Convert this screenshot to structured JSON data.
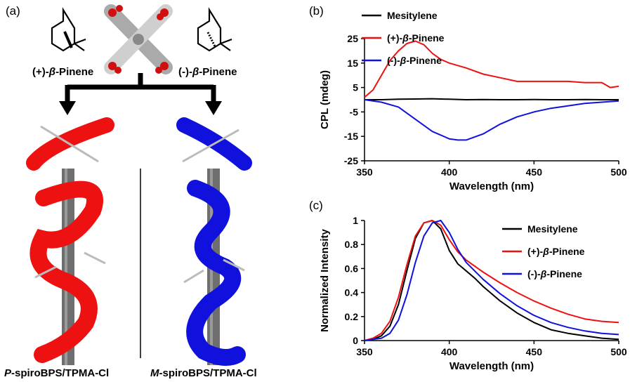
{
  "panels": {
    "a": "(a)",
    "b": "(b)",
    "c": "(c)"
  },
  "panel_a": {
    "left_molecule": {
      "prefix": "(+)-",
      "beta": "β",
      "suffix": "-Pinene"
    },
    "right_molecule": {
      "prefix": "(-)-",
      "beta": "β",
      "suffix": "-Pinene"
    },
    "left_caption": {
      "italic": "P",
      "rest": "-spiroBPS/TPMA-Cl"
    },
    "right_caption": {
      "italic": "M",
      "rest": "-spiroBPS/TPMA-Cl"
    },
    "colors": {
      "plus": "#ee1111",
      "minus": "#1111dd",
      "rod": "#6e6e6e"
    }
  },
  "chart_data": [
    {
      "type": "line",
      "panel": "b",
      "xlabel": "Wavelength (nm)",
      "ylabel": "CPL (mdeg)",
      "xlim": [
        350,
        500
      ],
      "ylim": [
        -25,
        25
      ],
      "xticks": [
        350,
        400,
        450,
        500
      ],
      "yticks": [
        25,
        15,
        5,
        -5,
        -15,
        -25
      ],
      "ytick_labels": [
        "25",
        "15",
        "5",
        "-5",
        "-15",
        "-25"
      ],
      "legend": "top-right",
      "grid": false,
      "series": [
        {
          "name": "Mesitylene",
          "color": "#000000",
          "x": [
            350,
            360,
            370,
            380,
            390,
            400,
            410,
            420,
            430,
            440,
            450,
            460,
            470,
            480,
            490,
            500
          ],
          "y": [
            0,
            0,
            0.2,
            0.3,
            0.4,
            0.2,
            0,
            0.1,
            0,
            0,
            0.1,
            0,
            0,
            0.1,
            0,
            0
          ]
        },
        {
          "name": "(+)-β-Pinene",
          "color": "#ee1111",
          "x": [
            350,
            355,
            360,
            365,
            370,
            375,
            380,
            385,
            390,
            395,
            400,
            410,
            420,
            430,
            440,
            450,
            460,
            470,
            480,
            490,
            495,
            500
          ],
          "y": [
            1,
            4,
            10,
            16,
            20,
            23,
            24,
            22.5,
            19,
            16.5,
            15,
            13,
            10.5,
            9,
            7.5,
            7.5,
            7.5,
            7.5,
            7,
            7,
            5,
            5.5
          ]
        },
        {
          "name": "(-)-β-Pinene",
          "color": "#1111dd",
          "x": [
            350,
            360,
            370,
            380,
            390,
            400,
            405,
            410,
            420,
            430,
            440,
            450,
            460,
            470,
            480,
            490,
            500
          ],
          "y": [
            0,
            -1,
            -3,
            -8,
            -13,
            -16,
            -16.5,
            -16.5,
            -14,
            -10,
            -7,
            -5,
            -3.5,
            -2.5,
            -1.5,
            -1,
            -0.5
          ]
        }
      ]
    },
    {
      "type": "line",
      "panel": "c",
      "xlabel": "Wavelength (nm)",
      "ylabel": "Normalized Intensity",
      "xlim": [
        350,
        500
      ],
      "ylim": [
        0,
        1
      ],
      "xticks": [
        350,
        400,
        450,
        500
      ],
      "yticks": [
        0,
        0.2,
        0.4,
        0.6,
        0.8,
        1
      ],
      "ytick_labels": [
        "0",
        "0.2",
        "0.4",
        "0.6",
        "0.8",
        "1"
      ],
      "legend": "top-right",
      "grid": false,
      "series": [
        {
          "name": "Mesitylene",
          "color": "#000000",
          "x": [
            350,
            355,
            360,
            365,
            370,
            375,
            380,
            385,
            390,
            395,
            400,
            405,
            410,
            415,
            420,
            430,
            440,
            450,
            460,
            470,
            480,
            490,
            500
          ],
          "y": [
            0,
            0.01,
            0.04,
            0.12,
            0.3,
            0.58,
            0.85,
            0.98,
            1.0,
            0.93,
            0.75,
            0.64,
            0.58,
            0.52,
            0.45,
            0.33,
            0.23,
            0.15,
            0.09,
            0.06,
            0.04,
            0.02,
            0.01
          ]
        },
        {
          "name": "(+)-β-Pinene",
          "color": "#ee1111",
          "x": [
            350,
            355,
            360,
            365,
            370,
            375,
            380,
            385,
            390,
            395,
            400,
            405,
            410,
            415,
            420,
            430,
            440,
            450,
            460,
            470,
            480,
            490,
            500
          ],
          "y": [
            0,
            0.02,
            0.06,
            0.16,
            0.36,
            0.63,
            0.87,
            0.98,
            1.0,
            0.96,
            0.84,
            0.74,
            0.67,
            0.62,
            0.57,
            0.48,
            0.4,
            0.33,
            0.27,
            0.22,
            0.18,
            0.16,
            0.15
          ]
        },
        {
          "name": "(-)-β-Pinene",
          "color": "#1111dd",
          "x": [
            350,
            355,
            360,
            365,
            370,
            375,
            380,
            385,
            390,
            395,
            400,
            405,
            410,
            415,
            420,
            430,
            440,
            450,
            460,
            470,
            480,
            490,
            500
          ],
          "y": [
            0,
            0.01,
            0.02,
            0.06,
            0.17,
            0.38,
            0.65,
            0.87,
            0.98,
            1.0,
            0.9,
            0.76,
            0.65,
            0.58,
            0.51,
            0.39,
            0.29,
            0.21,
            0.15,
            0.11,
            0.08,
            0.06,
            0.05
          ]
        }
      ]
    }
  ]
}
